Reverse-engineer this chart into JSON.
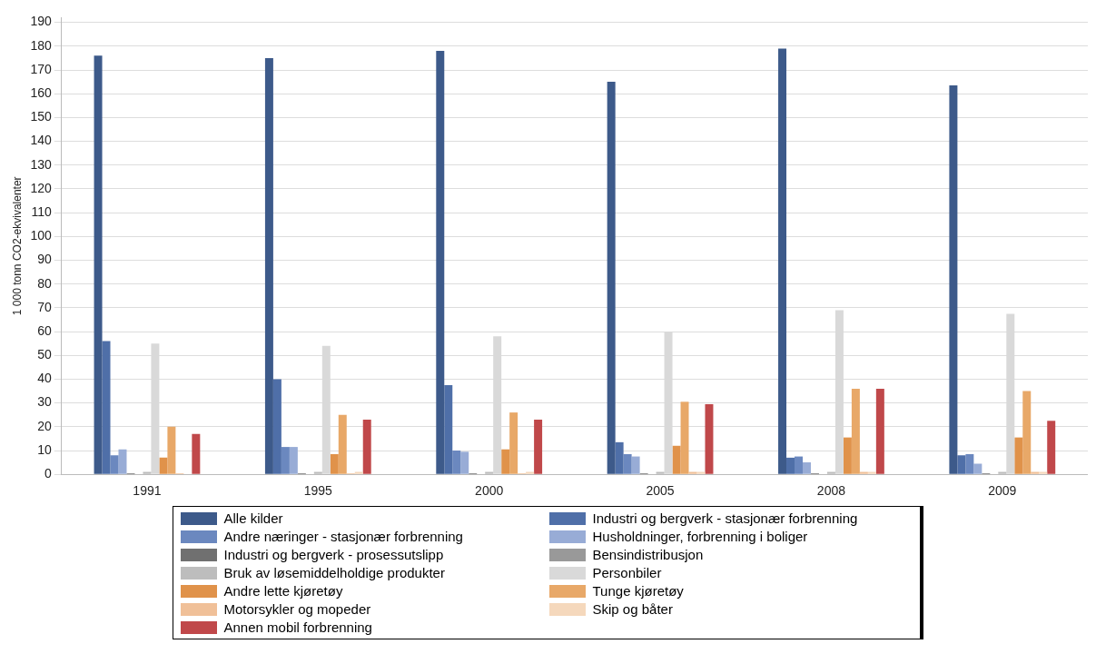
{
  "chart_data": {
    "type": "bar",
    "ylabel": "1 000 tonn CO2-ekvivalenter",
    "categories": [
      "1991",
      "1995",
      "2000",
      "2005",
      "2008",
      "2009"
    ],
    "series": [
      {
        "name": "Alle kilder",
        "color": "#3d5a8a",
        "values": [
          176,
          175,
          178,
          165,
          179,
          163.5
        ]
      },
      {
        "name": "Industri og bergverk - stasjonær forbrenning",
        "color": "#4f6fa8",
        "values": [
          56,
          40,
          37.5,
          13.5,
          7,
          8
        ]
      },
      {
        "name": "Andre næringer - stasjonær forbrenning",
        "color": "#6b88bf",
        "values": [
          8,
          11.5,
          10,
          8.5,
          7.5,
          8.5
        ]
      },
      {
        "name": "Husholdninger, forbrenning i boliger",
        "color": "#98acd6",
        "values": [
          10.5,
          11.5,
          9.5,
          7.5,
          5,
          4.5
        ]
      },
      {
        "name": "Industri og bergverk - prosessutslipp",
        "color": "#707070",
        "values": [
          0.5,
          0.5,
          0.5,
          0.5,
          0.5,
          0.5
        ]
      },
      {
        "name": "Bensindistribusjon",
        "color": "#999999",
        "values": [
          0,
          0,
          0,
          0,
          0,
          0
        ]
      },
      {
        "name": "Bruk av løsemiddelholdige produkter",
        "color": "#bdbdbd",
        "values": [
          1,
          1,
          1,
          1,
          1,
          1
        ]
      },
      {
        "name": "Personbiler",
        "color": "#d9d9d9",
        "values": [
          55,
          54,
          58,
          60,
          69,
          67.5
        ]
      },
      {
        "name": "Andre lette kjøretøy",
        "color": "#e0924a",
        "values": [
          7,
          8.5,
          10.5,
          12,
          15.5,
          15.5
        ]
      },
      {
        "name": "Tunge kjøretøy",
        "color": "#e8a868",
        "values": [
          20,
          25,
          26,
          30.5,
          36,
          35
        ]
      },
      {
        "name": "Motorsykler og mopeder",
        "color": "#f0c098",
        "values": [
          0.5,
          0.5,
          0.5,
          1,
          1,
          1
        ]
      },
      {
        "name": "Skip og båter",
        "color": "#f5d8bc",
        "values": [
          null,
          1,
          1,
          1,
          1,
          1
        ]
      },
      {
        "name": "Annen mobil forbrenning",
        "color": "#c0484a",
        "values": [
          17,
          23,
          23,
          29.5,
          36,
          22.5
        ]
      }
    ],
    "ylim": [
      0,
      192
    ],
    "yticks": [
      0,
      10,
      20,
      30,
      40,
      50,
      60,
      70,
      80,
      90,
      100,
      110,
      120,
      130,
      140,
      150,
      160,
      170,
      180,
      190
    ],
    "grid": "y",
    "legend": "bottom"
  }
}
